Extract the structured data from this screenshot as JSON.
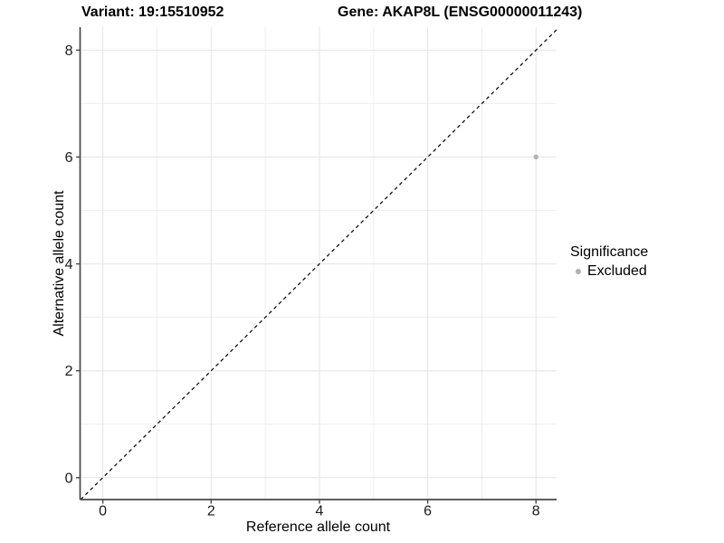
{
  "chart_data": {
    "type": "scatter",
    "title_left": "Variant: 19:15510952",
    "title_right": "Gene: AKAP8L (ENSG00000011243)",
    "xlabel": "Reference allele count",
    "ylabel": "Alternative allele count",
    "xlim": [
      -0.42,
      8.38
    ],
    "ylim": [
      -0.41,
      8.43
    ],
    "xticks": [
      0,
      2,
      4,
      6,
      8
    ],
    "yticks": [
      0,
      2,
      4,
      6,
      8
    ],
    "xticks_minor": [
      1,
      3,
      5,
      7
    ],
    "yticks_minor": [
      1,
      3,
      5,
      7
    ],
    "grid": "major and minor gridlines, white panel background",
    "reference_line": {
      "kind": "identity y=x",
      "style": "dashed",
      "color": "#000000"
    },
    "series": [
      {
        "name": "Excluded",
        "color": "#b1b1b1",
        "points": [
          {
            "x": 8,
            "y": 6
          }
        ]
      }
    ],
    "legend": {
      "position": "right",
      "title": "Significance",
      "entries": [
        {
          "label": "Excluded",
          "color": "#b1b1b1",
          "marker": "circle-icon"
        }
      ]
    },
    "colors": {
      "grid_major": "#e4e4e4",
      "grid_minor": "#efefef",
      "axis_line": "#474747",
      "tick_text": "#1a1a1a"
    }
  }
}
